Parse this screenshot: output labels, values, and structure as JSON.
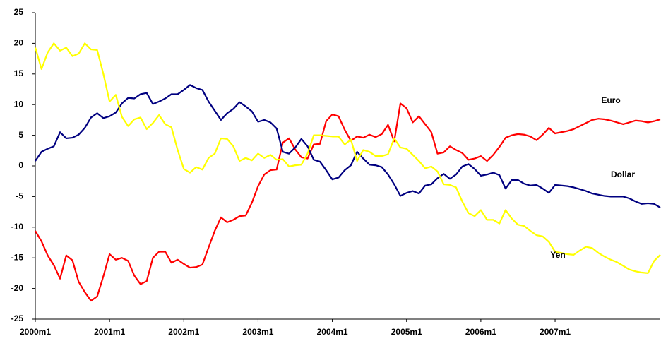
{
  "chart_data": {
    "type": "line",
    "categories": [
      "2000m1",
      null,
      null,
      null,
      null,
      null,
      null,
      null,
      null,
      null,
      null,
      null,
      "2001m1",
      null,
      null,
      null,
      null,
      null,
      null,
      null,
      null,
      null,
      null,
      null,
      "2002m1",
      null,
      null,
      null,
      null,
      null,
      null,
      null,
      null,
      null,
      null,
      null,
      "2003m1",
      null,
      null,
      null,
      null,
      null,
      null,
      null,
      null,
      null,
      null,
      null,
      "2004m1",
      null,
      null,
      null,
      null,
      null,
      null,
      null,
      null,
      null,
      null,
      null,
      "2005m1",
      null,
      null,
      null,
      null,
      null,
      null,
      null,
      null,
      null,
      null,
      null,
      "2006m1",
      null,
      null,
      null,
      null,
      null,
      null,
      null,
      null,
      null,
      null,
      null,
      "2007m1",
      null,
      null,
      null,
      null,
      null,
      null,
      null,
      null,
      null,
      null,
      null,
      null,
      null,
      null,
      null,
      null,
      null
    ],
    "series": [
      {
        "name": "Euro",
        "color": "#ff0000",
        "values": [
          -10.6,
          -12.3,
          -14.6,
          -16.2,
          -18.4,
          -14.6,
          -15.4,
          -18.9,
          -20.6,
          -22.0,
          -21.3,
          -18.0,
          -14.4,
          -15.3,
          -15.0,
          -15.5,
          -17.9,
          -19.3,
          -18.8,
          -15.0,
          -14.0,
          -14.0,
          -15.8,
          -15.3,
          -16.0,
          -16.6,
          -16.5,
          -16.1,
          -13.3,
          -10.6,
          -8.4,
          -9.2,
          -8.8,
          -8.2,
          -8.1,
          -6.0,
          -3.3,
          -1.4,
          -0.7,
          -0.6,
          3.8,
          4.5,
          2.7,
          1.4,
          1.2,
          3.5,
          3.6,
          7.3,
          8.4,
          8.1,
          5.9,
          4.1,
          4.8,
          4.6,
          5.1,
          4.7,
          5.2,
          6.7,
          4.0,
          10.2,
          9.4,
          7.1,
          8.1,
          6.8,
          5.5,
          2.0,
          2.2,
          3.2,
          2.6,
          2.1,
          1.0,
          1.2,
          1.6,
          0.8,
          1.8,
          3.1,
          4.6,
          5.0,
          5.2,
          5.1,
          4.8,
          4.2,
          5.1,
          6.2,
          5.3,
          5.5,
          5.7,
          6.0,
          6.5,
          7.0,
          7.5,
          7.7,
          7.6,
          7.4,
          7.1,
          6.8,
          7.1,
          7.4,
          7.3,
          7.1,
          7.3,
          7.6
        ]
      },
      {
        "name": "Dollar",
        "color": "#000080",
        "values": [
          0.8,
          2.3,
          2.8,
          3.2,
          5.5,
          4.5,
          4.6,
          5.1,
          6.2,
          7.9,
          8.6,
          7.8,
          8.1,
          8.7,
          10.2,
          11.1,
          11.0,
          11.7,
          11.9,
          10.1,
          10.5,
          11.0,
          11.7,
          11.7,
          12.4,
          13.2,
          12.7,
          12.4,
          10.5,
          9.0,
          7.5,
          8.6,
          9.3,
          10.4,
          9.7,
          8.9,
          7.2,
          7.5,
          7.1,
          6.1,
          2.3,
          2.0,
          3.0,
          4.4,
          3.2,
          1.0,
          0.7,
          -0.7,
          -2.2,
          -1.9,
          -0.7,
          0.1,
          2.3,
          1.2,
          0.2,
          0.1,
          -0.2,
          -1.4,
          -3.0,
          -4.9,
          -4.4,
          -4.1,
          -4.5,
          -3.2,
          -3.0,
          -2.0,
          -1.3,
          -2.1,
          -1.4,
          -0.1,
          0.3,
          -0.5,
          -1.6,
          -1.4,
          -1.1,
          -1.5,
          -3.7,
          -2.3,
          -2.3,
          -2.9,
          -3.2,
          -3.1,
          -3.7,
          -4.4,
          -3.1,
          -3.2,
          -3.3,
          -3.5,
          -3.8,
          -4.1,
          -4.5,
          -4.7,
          -4.9,
          -5.0,
          -5.0,
          -5.0,
          -5.3,
          -5.8,
          -6.2,
          -6.1,
          -6.2,
          -6.8
        ]
      },
      {
        "name": "Yen",
        "color": "#ffff00",
        "values": [
          19.3,
          15.8,
          18.5,
          20.0,
          18.8,
          19.3,
          17.9,
          18.3,
          20.0,
          19.0,
          18.9,
          15.0,
          10.5,
          11.6,
          8.0,
          6.5,
          7.6,
          7.9,
          6.0,
          7.0,
          8.3,
          6.8,
          6.3,
          2.6,
          -0.5,
          -1.1,
          -0.2,
          -0.6,
          1.3,
          2.0,
          4.5,
          4.4,
          3.2,
          0.8,
          1.3,
          0.9,
          2.0,
          1.3,
          1.8,
          1.0,
          1.1,
          -0.1,
          0.1,
          0.2,
          2.0,
          5.0,
          5.0,
          4.9,
          4.8,
          4.8,
          3.5,
          4.3,
          0.8,
          2.6,
          2.3,
          1.6,
          1.6,
          1.9,
          4.5,
          3.0,
          2.8,
          1.8,
          0.8,
          -0.4,
          -0.1,
          -0.9,
          -3.0,
          -3.1,
          -3.5,
          -5.8,
          -7.7,
          -8.2,
          -7.2,
          -8.8,
          -8.8,
          -9.4,
          -7.2,
          -8.6,
          -9.6,
          -9.8,
          -10.6,
          -11.3,
          -11.5,
          -12.4,
          -14.0,
          -14.2,
          -14.4,
          -14.5,
          -13.8,
          -13.2,
          -13.4,
          -14.2,
          -14.8,
          -15.3,
          -15.7,
          -16.3,
          -16.9,
          -17.2,
          -17.4,
          -17.5,
          -15.5,
          -14.5
        ]
      }
    ],
    "ylim": [
      -25,
      25
    ],
    "yticks": [
      -25,
      -20,
      -15,
      -10,
      -5,
      0,
      5,
      10,
      15,
      20,
      25
    ],
    "grid": false
  }
}
